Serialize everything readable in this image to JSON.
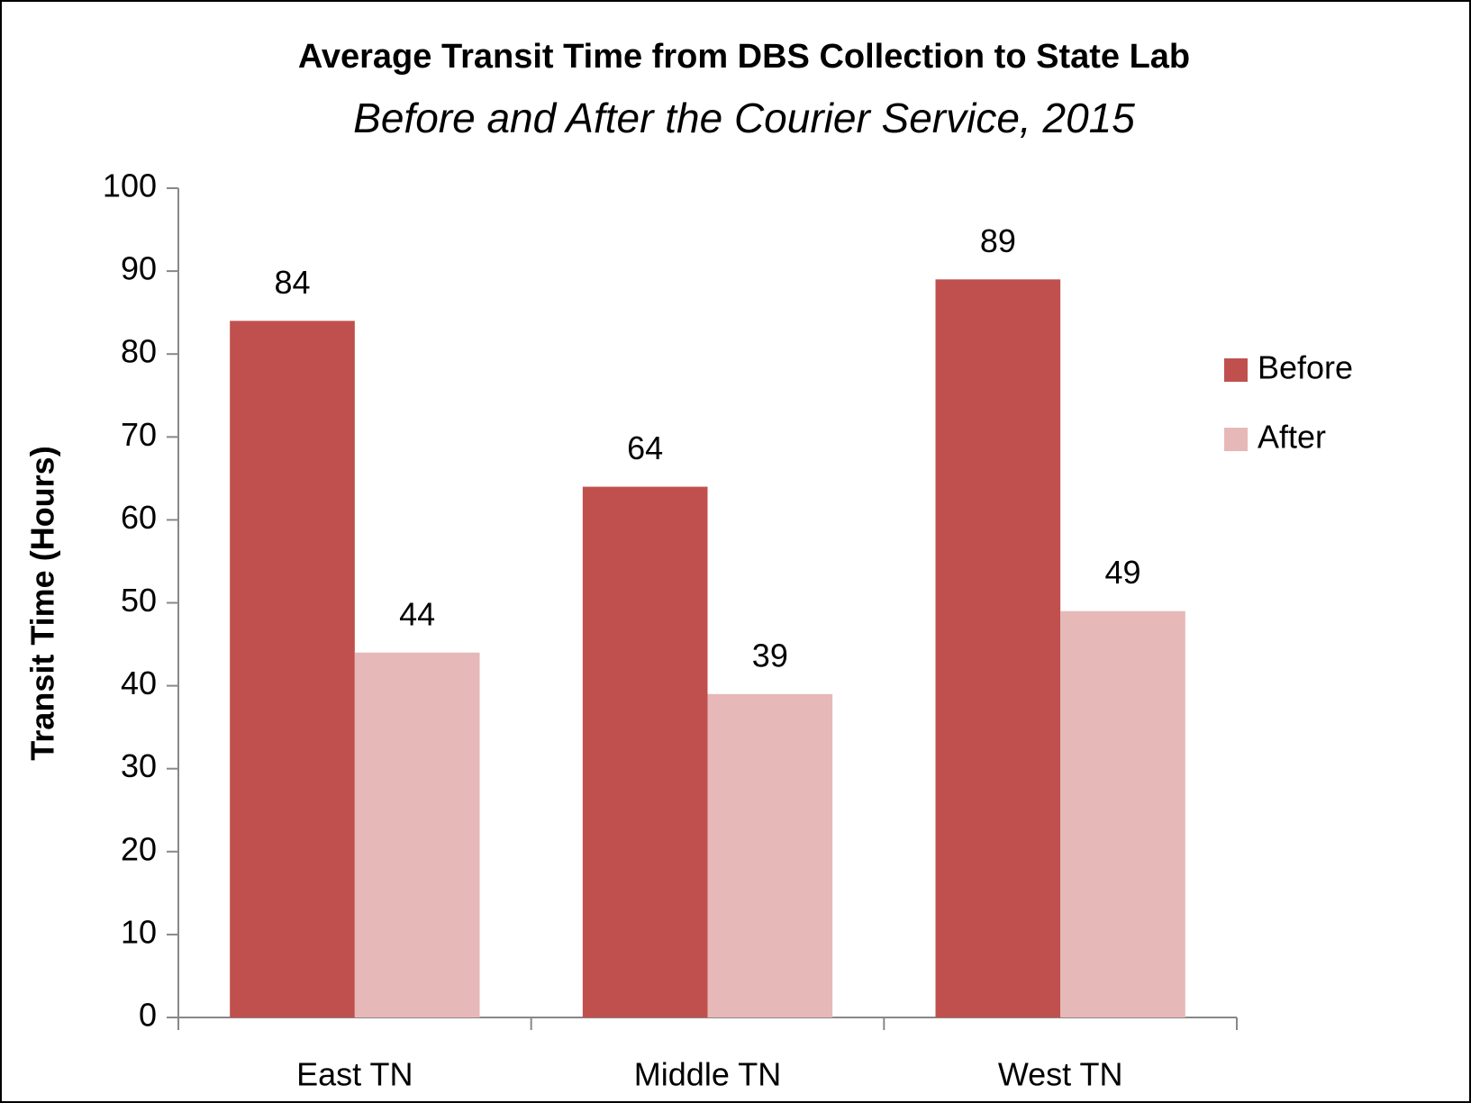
{
  "chart_data": {
    "type": "bar",
    "title": "Average Transit Time from DBS Collection to State Lab",
    "subtitle": "Before and After the Courier Service, 2015",
    "y_label": "Transit Time (Hours)",
    "categories": [
      "East TN",
      "Middle TN",
      "West TN"
    ],
    "series": [
      {
        "name": "Before",
        "color": "#c0504d",
        "values": [
          84,
          64,
          89
        ]
      },
      {
        "name": "After",
        "color": "#e6b8b7",
        "values": [
          44,
          39,
          49
        ]
      }
    ],
    "ylim": [
      0,
      100
    ],
    "yticks": [
      0,
      10,
      20,
      30,
      40,
      50,
      60,
      70,
      80,
      90,
      100
    ],
    "legend": "right"
  }
}
